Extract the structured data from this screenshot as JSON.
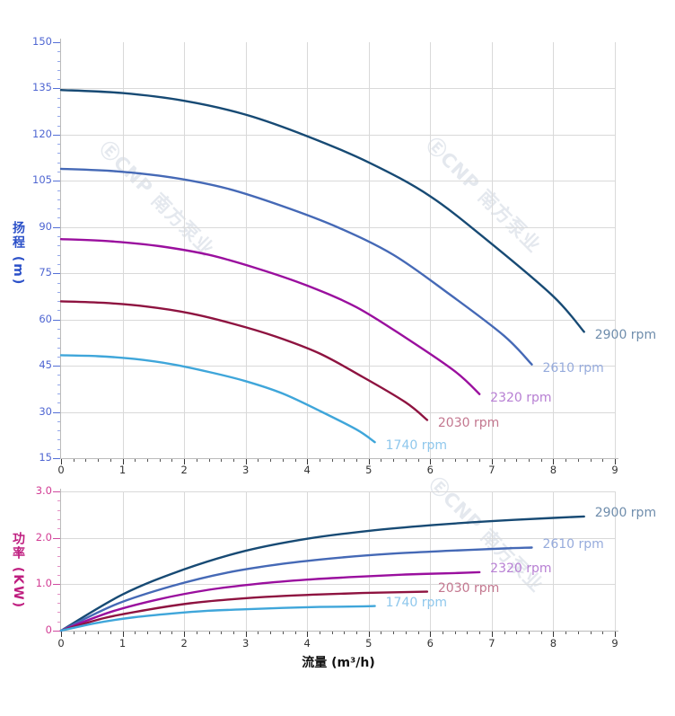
{
  "watermark": {
    "text": "ⒺCNP 南方泵业",
    "color": "#d3dae3"
  },
  "x_axis": {
    "title": "流量 (m³/h)",
    "tick_labels": [
      "0",
      "1",
      "2",
      "3",
      "4",
      "5",
      "6",
      "7",
      "8",
      "9"
    ],
    "tick_label_color": "#333333",
    "tick_color": "#333333",
    "minor_tick_color": "#555555",
    "axis_line_color": "#bbbbbb"
  },
  "head_chart": {
    "y_title": "扬程 (m)",
    "y_title_color": "#2b50c8",
    "y_tick_labels": [
      "150",
      "135",
      "120",
      "105",
      "90",
      "75",
      "60",
      "45",
      "30",
      "15"
    ],
    "y_tick_label_color": "#4f66d2",
    "y_tick_color": "#5570d6",
    "y_minor_tick_color": "#93a7ea"
  },
  "power_chart": {
    "y_title": "功率 (KW)",
    "y_title_color": "#bf1d7f",
    "y_tick_labels": [
      "3.0",
      "2.0",
      "1.0",
      "0"
    ],
    "y_tick_label_color": "#d23c94",
    "y_tick_color": "#cf4ba0",
    "y_minor_tick_color": "#e391c4"
  },
  "grid_color": "#d9d9d9",
  "chart_data": [
    {
      "type": "line",
      "name": "head-vs-flow",
      "title": "",
      "xlabel": "流量 (m³/h)",
      "ylabel": "扬程 (m)",
      "xlim": [
        0,
        9
      ],
      "ylim": [
        15,
        150
      ],
      "x_major_step": 1,
      "x_minor_step": 0.2,
      "y_major_step": 15,
      "y_minor_step": 3,
      "grid": true,
      "legend_position": "labels-at-curve-ends",
      "series": [
        {
          "name": "2900 rpm",
          "color": "#174a74",
          "label_color": "#6f8dac",
          "points": [
            [
              0,
              134.5
            ],
            [
              1,
              133.5
            ],
            [
              2,
              131
            ],
            [
              3,
              126.5
            ],
            [
              4,
              119.5
            ],
            [
              5,
              111
            ],
            [
              6,
              100
            ],
            [
              7,
              84.5
            ],
            [
              8,
              67.5
            ],
            [
              8.5,
              56
            ]
          ]
        },
        {
          "name": "2610 rpm",
          "color": "#4569b6",
          "label_color": "#96abdc",
          "points": [
            [
              0,
              108.9
            ],
            [
              0.9,
              108.1
            ],
            [
              1.8,
              106.1
            ],
            [
              2.7,
              102.5
            ],
            [
              3.6,
              96.8
            ],
            [
              4.5,
              89.9
            ],
            [
              5.4,
              81
            ],
            [
              6.3,
              68.4
            ],
            [
              7.2,
              54.7
            ],
            [
              7.65,
              45.4
            ]
          ]
        },
        {
          "name": "2320 rpm",
          "color": "#9a0f9e",
          "label_color": "#b77fd3",
          "points": [
            [
              0,
              86.1
            ],
            [
              0.8,
              85.4
            ],
            [
              1.6,
              83.8
            ],
            [
              2.4,
              81
            ],
            [
              3.2,
              76.5
            ],
            [
              4,
              71
            ],
            [
              4.8,
              64
            ],
            [
              5.6,
              54.1
            ],
            [
              6.4,
              43.2
            ],
            [
              6.8,
              35.8
            ]
          ]
        },
        {
          "name": "2030 rpm",
          "color": "#8e1340",
          "label_color": "#c3778f",
          "points": [
            [
              0,
              65.9
            ],
            [
              0.7,
              65.4
            ],
            [
              1.4,
              64.2
            ],
            [
              2.1,
              62
            ],
            [
              2.8,
              58.6
            ],
            [
              3.5,
              54.4
            ],
            [
              4.2,
              49
            ],
            [
              4.9,
              41.4
            ],
            [
              5.6,
              33.1
            ],
            [
              5.95,
              27.4
            ]
          ]
        },
        {
          "name": "1740 rpm",
          "color": "#3fa6da",
          "label_color": "#8ec7ec",
          "points": [
            [
              0,
              48.4
            ],
            [
              0.6,
              48.1
            ],
            [
              1.2,
              47.2
            ],
            [
              1.8,
              45.5
            ],
            [
              2.4,
              43
            ],
            [
              3,
              40
            ],
            [
              3.6,
              36
            ],
            [
              4.2,
              30.4
            ],
            [
              4.8,
              24.3
            ],
            [
              5.1,
              20.2
            ]
          ]
        }
      ]
    },
    {
      "type": "line",
      "name": "power-vs-flow",
      "title": "",
      "xlabel": "流量 (m³/h)",
      "ylabel": "功率 (KW)",
      "xlim": [
        0,
        9
      ],
      "ylim": [
        0,
        3
      ],
      "x_major_step": 1,
      "x_minor_step": 0.2,
      "y_major_step": 1,
      "y_minor_step": 0.2,
      "grid": true,
      "legend_position": "labels-at-curve-ends",
      "series": [
        {
          "name": "2900 rpm",
          "color": "#174a74",
          "label_color": "#6f8dac",
          "points": [
            [
              0,
              0
            ],
            [
              1,
              0.78
            ],
            [
              2,
              1.32
            ],
            [
              3,
              1.72
            ],
            [
              4,
              1.98
            ],
            [
              5,
              2.15
            ],
            [
              6,
              2.27
            ],
            [
              7,
              2.36
            ],
            [
              8,
              2.43
            ],
            [
              8.5,
              2.46
            ]
          ]
        },
        {
          "name": "2610 rpm",
          "color": "#4569b6",
          "label_color": "#96abdc",
          "points": [
            [
              0,
              0
            ],
            [
              0.9,
              0.57
            ],
            [
              1.8,
              0.96
            ],
            [
              2.7,
              1.25
            ],
            [
              3.6,
              1.44
            ],
            [
              4.5,
              1.57
            ],
            [
              5.4,
              1.66
            ],
            [
              6.3,
              1.72
            ],
            [
              7.2,
              1.77
            ],
            [
              7.65,
              1.79
            ]
          ]
        },
        {
          "name": "2320 rpm",
          "color": "#9a0f9e",
          "label_color": "#b77fd3",
          "points": [
            [
              0,
              0
            ],
            [
              0.8,
              0.4
            ],
            [
              1.6,
              0.68
            ],
            [
              2.4,
              0.88
            ],
            [
              3.2,
              1.01
            ],
            [
              4,
              1.1
            ],
            [
              4.8,
              1.16
            ],
            [
              5.6,
              1.21
            ],
            [
              6.4,
              1.24
            ],
            [
              6.8,
              1.26
            ]
          ]
        },
        {
          "name": "2030 rpm",
          "color": "#8e1340",
          "label_color": "#c3778f",
          "points": [
            [
              0,
              0
            ],
            [
              0.7,
              0.27
            ],
            [
              1.4,
              0.45
            ],
            [
              2.1,
              0.59
            ],
            [
              2.8,
              0.68
            ],
            [
              3.5,
              0.74
            ],
            [
              4.2,
              0.78
            ],
            [
              4.9,
              0.81
            ],
            [
              5.6,
              0.83
            ],
            [
              5.95,
              0.84
            ]
          ]
        },
        {
          "name": "1740 rpm",
          "color": "#3fa6da",
          "label_color": "#8ec7ec",
          "points": [
            [
              0,
              0
            ],
            [
              0.6,
              0.17
            ],
            [
              1.2,
              0.29
            ],
            [
              1.8,
              0.37
            ],
            [
              2.4,
              0.43
            ],
            [
              3,
              0.46
            ],
            [
              3.6,
              0.49
            ],
            [
              4.2,
              0.51
            ],
            [
              4.8,
              0.52
            ],
            [
              5.1,
              0.53
            ]
          ]
        }
      ]
    }
  ]
}
